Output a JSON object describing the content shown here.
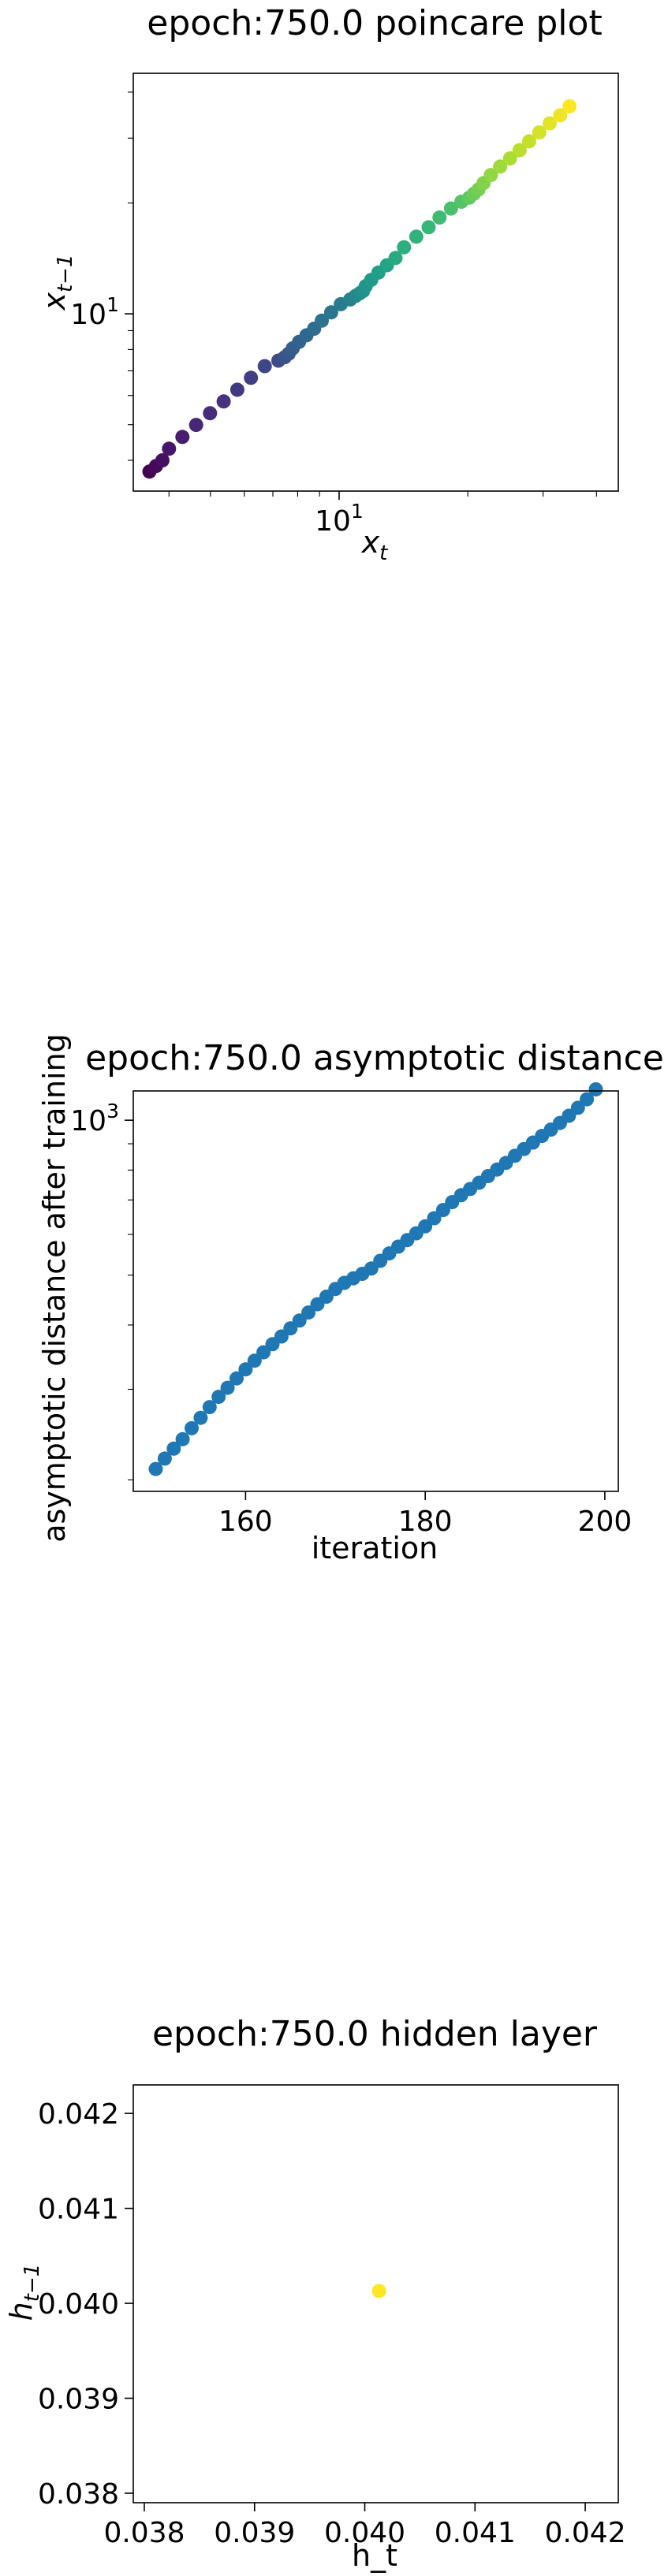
{
  "chart_data": [
    {
      "type": "scatter",
      "title": "epoch:750.0 poincare plot",
      "xlabel_base": "x",
      "xlabel_sub": "t",
      "ylabel_base": "x",
      "ylabel_sub": "t−1",
      "xscale": "log",
      "yscale": "log",
      "xlim": [
        3.3,
        45
      ],
      "ylim": [
        3.3,
        45
      ],
      "x_ticks": [
        {
          "value": 10,
          "base": "10",
          "exp": "1"
        }
      ],
      "y_ticks": [
        {
          "value": 10,
          "base": "10",
          "exp": "1"
        }
      ],
      "colormap": "viridis",
      "grid": false,
      "x": [
        3.6,
        3.73,
        3.86,
        4.0,
        4.3,
        4.63,
        4.99,
        5.37,
        5.78,
        6.22,
        6.7,
        7.21,
        7.46,
        7.62,
        7.79,
        8.06,
        8.39,
        8.74,
        9.11,
        9.58,
        10.09,
        10.62,
        10.94,
        11.19,
        11.38,
        11.54,
        11.89,
        12.36,
        12.94,
        13.55,
        14.18,
        15.16,
        16.2,
        17.18,
        18.27,
        19.32,
        20.16,
        20.67,
        21.2,
        21.77,
        22.64,
        23.81,
        25.12,
        26.44,
        27.83,
        29.4,
        31.1,
        32.9,
        34.6
      ],
      "y": [
        3.73,
        3.86,
        4.0,
        4.3,
        4.63,
        4.99,
        5.37,
        5.78,
        6.22,
        6.7,
        7.21,
        7.46,
        7.62,
        7.79,
        8.06,
        8.39,
        8.74,
        9.11,
        9.58,
        10.09,
        10.62,
        10.94,
        11.19,
        11.38,
        11.54,
        11.89,
        12.36,
        12.94,
        13.55,
        14.18,
        15.16,
        16.2,
        17.18,
        18.27,
        19.32,
        20.16,
        20.67,
        21.2,
        21.77,
        22.64,
        23.81,
        25.12,
        26.44,
        27.83,
        29.4,
        31.1,
        32.9,
        34.6,
        36.6
      ]
    },
    {
      "type": "scatter",
      "title": "epoch:750.0 asymptotic distance",
      "xlabel": "iteration",
      "ylabel": "asymptotic distance after training",
      "xscale": "linear",
      "yscale": "log",
      "xlim": [
        147.5,
        201.5
      ],
      "ylim": [
        190,
        1140
      ],
      "x_ticks": [
        {
          "value": 160,
          "label": "160"
        },
        {
          "value": 180,
          "label": "180"
        },
        {
          "value": 200,
          "label": "200"
        }
      ],
      "y_ticks": [
        {
          "value": 1000,
          "base": "10",
          "exp": "3"
        }
      ],
      "point_color": "#1f77b4",
      "grid": false,
      "x": [
        150,
        151,
        152,
        153,
        154,
        155,
        156,
        157,
        158,
        159,
        160,
        161,
        162,
        163,
        164,
        165,
        166,
        167,
        168,
        169,
        170,
        171,
        172,
        173,
        174,
        175,
        176,
        177,
        178,
        179,
        180,
        181,
        182,
        183,
        184,
        185,
        186,
        187,
        188,
        189,
        190,
        191,
        192,
        193,
        194,
        195,
        196,
        197,
        198,
        199
      ],
      "y": [
        210,
        220,
        230,
        240,
        252,
        264,
        277,
        290,
        302,
        315,
        328,
        341,
        354,
        367,
        380,
        394,
        408,
        423,
        439,
        454,
        470,
        483,
        493,
        503,
        515,
        533,
        551,
        568,
        585,
        603,
        622,
        645,
        669,
        693,
        715,
        735,
        756,
        779,
        802,
        826,
        853,
        879,
        905,
        932,
        959,
        988,
        1020,
        1057,
        1098,
        1148
      ]
    },
    {
      "type": "scatter",
      "title": "epoch:750.0 hidden layer",
      "xlabel": "h_t",
      "ylabel_base": "h",
      "ylabel_sub": "t−1",
      "xscale": "linear",
      "yscale": "linear",
      "xlim": [
        0.0379,
        0.0423
      ],
      "ylim": [
        0.0379,
        0.0423
      ],
      "x_ticks": [
        {
          "value": 0.038,
          "label": "0.038"
        },
        {
          "value": 0.039,
          "label": "0.039"
        },
        {
          "value": 0.04,
          "label": "0.040"
        },
        {
          "value": 0.041,
          "label": "0.041"
        },
        {
          "value": 0.042,
          "label": "0.042"
        }
      ],
      "y_ticks": [
        {
          "value": 0.038,
          "label": "0.038"
        },
        {
          "value": 0.039,
          "label": "0.039"
        },
        {
          "value": 0.04,
          "label": "0.040"
        },
        {
          "value": 0.041,
          "label": "0.041"
        },
        {
          "value": 0.042,
          "label": "0.042"
        }
      ],
      "point_color": "#fde725",
      "grid": false,
      "x": [
        0.04013
      ],
      "y": [
        0.04013
      ]
    }
  ]
}
